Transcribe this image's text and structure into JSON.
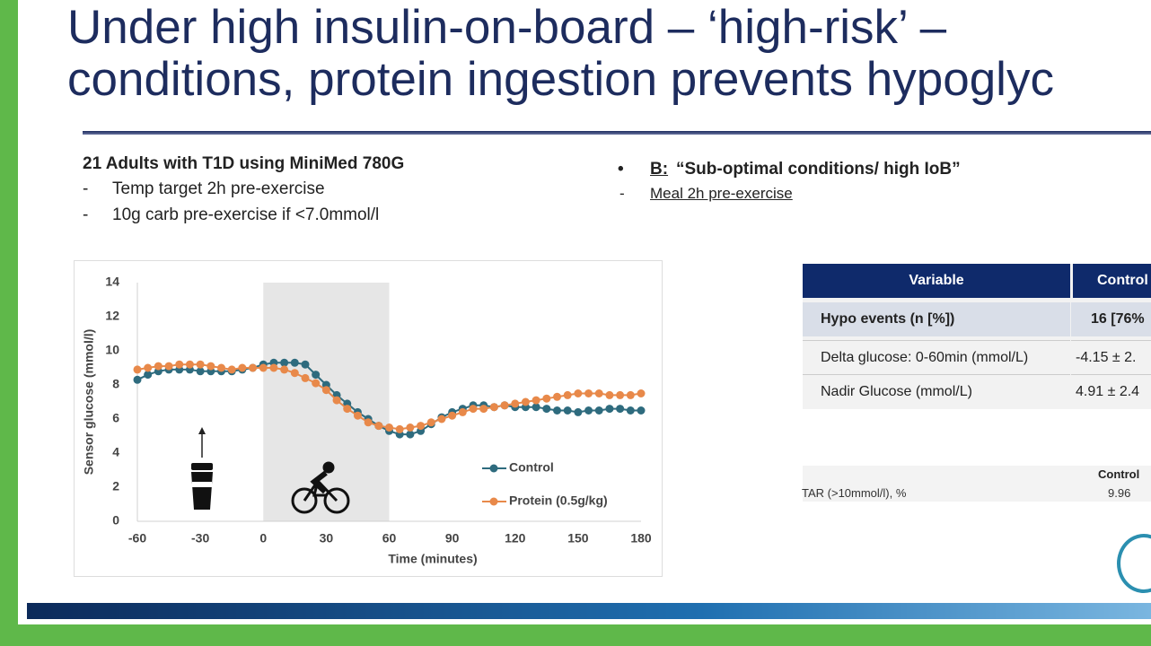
{
  "title": [
    "Under high insulin-on-board – ‘high-risk’ –",
    "conditions, protein ingestion prevents hypoglyc"
  ],
  "left_block": {
    "heading": "21 Adults with T1D using MiniMed 780G",
    "items": [
      "Temp target 2h pre-exercise",
      "10g carb pre-exercise if <7.0mmol/l"
    ]
  },
  "right_block": {
    "label": "B:",
    "heading": "“Sub-optimal conditions/ high IoB”",
    "items": [
      "Meal 2h pre-exercise"
    ]
  },
  "table": {
    "header": [
      "Variable",
      "Control"
    ],
    "rows": [
      [
        "Hypo events (n [%])",
        "16 [76%"
      ],
      [
        "Delta glucose: 0-60min (mmol/L)",
        "-4.15 ± 2."
      ],
      [
        "Nadir Glucose (mmol/L)",
        "4.91 ± 2.4"
      ]
    ]
  },
  "tar_table": {
    "header": "Control",
    "row": [
      "TAR (>10mmol/l), %",
      "9.96"
    ]
  },
  "chart_data": {
    "type": "line",
    "x_label": "Time (minutes)",
    "y_label": "Sensor glucose (mmol/l)",
    "xlim": [
      -60,
      180
    ],
    "xticks": [
      -60,
      -30,
      0,
      30,
      60,
      90,
      120,
      150,
      180
    ],
    "ylim": [
      0,
      14
    ],
    "yticks": [
      0,
      2,
      4,
      6,
      8,
      10,
      12,
      14
    ],
    "shaded_x": [
      0,
      60
    ],
    "x": [
      -60,
      -55,
      -50,
      -45,
      -40,
      -35,
      -30,
      -25,
      -20,
      -15,
      -10,
      -5,
      0,
      5,
      10,
      15,
      20,
      25,
      30,
      35,
      40,
      45,
      50,
      55,
      60,
      65,
      70,
      75,
      80,
      85,
      90,
      95,
      100,
      105,
      110,
      115,
      120,
      125,
      130,
      135,
      140,
      145,
      150,
      155,
      160,
      165,
      170,
      175,
      180
    ],
    "series": [
      {
        "name": "Control",
        "color": "#2e6b7e",
        "values": [
          8.3,
          8.6,
          8.8,
          8.9,
          8.9,
          8.9,
          8.8,
          8.8,
          8.8,
          8.8,
          8.9,
          9.0,
          9.2,
          9.3,
          9.3,
          9.3,
          9.2,
          8.6,
          8.0,
          7.4,
          6.9,
          6.4,
          6.0,
          5.6,
          5.3,
          5.1,
          5.1,
          5.3,
          5.7,
          6.1,
          6.4,
          6.6,
          6.8,
          6.8,
          6.7,
          6.8,
          6.7,
          6.7,
          6.7,
          6.6,
          6.5,
          6.5,
          6.4,
          6.5,
          6.5,
          6.6,
          6.6,
          6.5,
          6.5
        ]
      },
      {
        "name": "Protein (0.5g/kg)",
        "color": "#e8894a",
        "values": [
          8.9,
          9.0,
          9.1,
          9.1,
          9.2,
          9.2,
          9.2,
          9.1,
          9.0,
          8.9,
          9.0,
          9.0,
          9.0,
          9.0,
          8.9,
          8.7,
          8.4,
          8.1,
          7.7,
          7.1,
          6.6,
          6.2,
          5.8,
          5.6,
          5.5,
          5.4,
          5.5,
          5.6,
          5.8,
          6.0,
          6.2,
          6.4,
          6.6,
          6.6,
          6.7,
          6.8,
          6.9,
          7.0,
          7.1,
          7.2,
          7.3,
          7.4,
          7.5,
          7.5,
          7.5,
          7.4,
          7.4,
          7.4,
          7.5
        ]
      }
    ]
  }
}
